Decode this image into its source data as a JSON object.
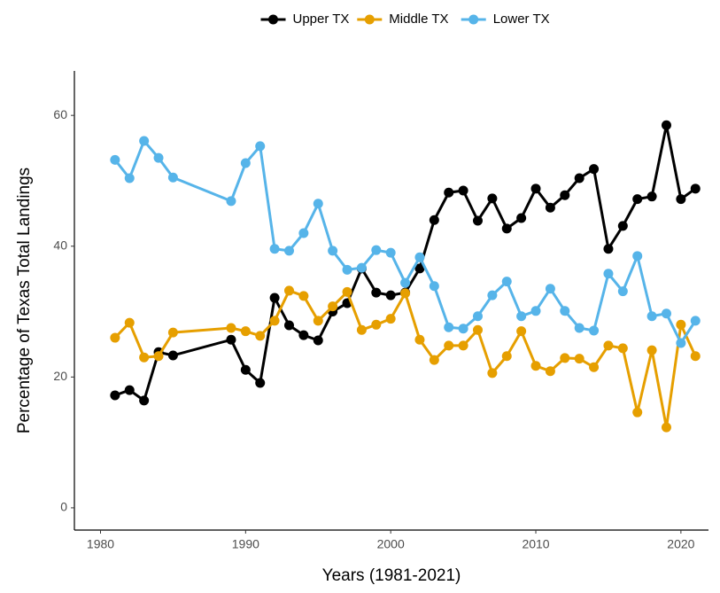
{
  "chart_data": {
    "type": "line",
    "x_label": "Years (1981-2021)",
    "y_label": "Percentage of Texas Total Landings",
    "x": [
      1981,
      1982,
      1983,
      1984,
      1985,
      1989,
      1990,
      1991,
      1992,
      1993,
      1994,
      1995,
      1996,
      1997,
      1998,
      1999,
      2000,
      2001,
      2002,
      2003,
      2004,
      2005,
      2006,
      2007,
      2008,
      2009,
      2010,
      2011,
      2012,
      2013,
      2014,
      2015,
      2016,
      2017,
      2018,
      2019,
      2020,
      2021
    ],
    "series": [
      {
        "name": "Upper TX",
        "color": "#000000",
        "values": [
          17.2,
          18,
          16.4,
          23.8,
          23.3,
          25.7,
          21.1,
          19.1,
          32.1,
          27.9,
          26.4,
          25.6,
          30,
          31.3,
          36.6,
          32.9,
          32.5,
          32.9,
          36.6,
          44,
          48.2,
          48.5,
          43.9,
          47.3,
          42.7,
          44.3,
          48.8,
          45.9,
          47.8,
          50.4,
          51.8,
          39.6,
          43.1,
          47.2,
          47.6,
          58.5,
          47.2,
          48.8
        ]
      },
      {
        "name": "Middle TX",
        "color": "#E69F00",
        "values": [
          26,
          28.3,
          23,
          23.2,
          26.8,
          27.5,
          27,
          26.3,
          28.6,
          33.2,
          32.4,
          28.6,
          30.8,
          33,
          27.2,
          28,
          28.9,
          32.8,
          25.7,
          22.6,
          24.8,
          24.8,
          27.2,
          20.6,
          23.2,
          27,
          21.7,
          20.9,
          22.9,
          22.8,
          21.5,
          24.8,
          24.4,
          14.6,
          24.1,
          12.3,
          28,
          23.2
        ]
      },
      {
        "name": "Lower TX",
        "color": "#56B4E9",
        "values": [
          53.2,
          50.4,
          56.1,
          53.5,
          50.5,
          46.9,
          52.7,
          55.3,
          39.6,
          39.3,
          42,
          46.5,
          39.3,
          36.4,
          36.7,
          39.4,
          39,
          34.4,
          38.3,
          33.9,
          27.6,
          27.4,
          29.3,
          32.5,
          34.6,
          29.3,
          30.1,
          33.5,
          30.1,
          27.5,
          27.1,
          35.8,
          33.1,
          38.5,
          29.3,
          29.7,
          25.2,
          28.6
        ]
      }
    ],
    "xlim": [
      1978.2,
      2021.9
    ],
    "xticks": [
      1980,
      1990,
      2000,
      2010,
      2020
    ],
    "ylim": [
      -3.4,
      66.8
    ],
    "yticks": [
      0,
      20,
      40,
      60
    ],
    "grid": false,
    "legend": "top"
  }
}
